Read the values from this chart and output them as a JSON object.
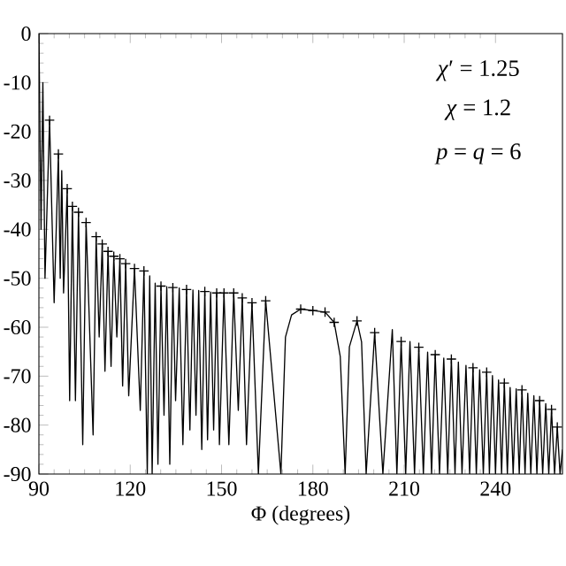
{
  "chart_data": {
    "type": "line",
    "xlabel": "Φ (degrees)",
    "annotations": [
      "*χ*′ = 1.25",
      "*χ* = 1.2",
      "*p* = *q* = 6"
    ],
    "xlim": [
      90,
      262
    ],
    "xticks": [
      90,
      120,
      150,
      180,
      210,
      240
    ],
    "ylim": [
      -90,
      0
    ],
    "yticks": [
      -90,
      -80,
      -70,
      -60,
      -50,
      -40,
      -30,
      -20,
      -10,
      0
    ],
    "series": [
      {
        "color": "#000000",
        "marker": "none",
        "line_style": "solid",
        "x": [
          90,
          90.7,
          91.3,
          92,
          93.5,
          95,
          96.4,
          97,
          97.5,
          98.1,
          99.3,
          100.1,
          101,
          102,
          103,
          104.4,
          105.5,
          107.8,
          108.8,
          109.8,
          110.8,
          111.7,
          112.7,
          113.7,
          114.6,
          115.6,
          116.6,
          117.5,
          118.5,
          119.5,
          121.4,
          123.3,
          124.5,
          125.6,
          126.4,
          127.2,
          128.2,
          129.1,
          130.1,
          131.1,
          132,
          133,
          134,
          134.9,
          136.1,
          137.3,
          138.5,
          139.6,
          140.6,
          141.6,
          142.5,
          143.5,
          144.5,
          145.4,
          146.4,
          147.4,
          148.4,
          149.3,
          150.8,
          152.4,
          154,
          155.5,
          156.8,
          158.2,
          160,
          162.1,
          164.5,
          169.5,
          171,
          173,
          176,
          180,
          184,
          187,
          189,
          190.6,
          192,
          194.5,
          196,
          197.5,
          200.3,
          203,
          206.1,
          207.6,
          209,
          210.5,
          211.9,
          213.4,
          214.8,
          216.3,
          217.7,
          219,
          220.2,
          221.6,
          223,
          224.3,
          225.5,
          226.7,
          227.8,
          229,
          230.3,
          231.5,
          232.6,
          233.7,
          234.8,
          236,
          237.1,
          238,
          239,
          240,
          241,
          242,
          242.9,
          243.9,
          244.8,
          245.8,
          246.8,
          247.8,
          248.7,
          249.7,
          250.6,
          251.6,
          252.6,
          253.6,
          254.5,
          255.5,
          256.5,
          257.5,
          258.4,
          259.4,
          260.3,
          261.2,
          262
        ],
        "values": [
          0,
          -40,
          -10,
          -50,
          -17.7,
          -55,
          -24.6,
          -50,
          -28,
          -53,
          -31.7,
          -75,
          -35.3,
          -75,
          -36.5,
          -84,
          -38.6,
          -82,
          -41.5,
          -62,
          -43,
          -69,
          -44.5,
          -68,
          -45.5,
          -62,
          -46,
          -72,
          -47,
          -74,
          -48,
          -77,
          -48.5,
          -90,
          -49.5,
          -90,
          -51,
          -88,
          -51.6,
          -78,
          -51.7,
          -88,
          -51.9,
          -75,
          -52,
          -84,
          -52.3,
          -81,
          -52.4,
          -78,
          -52.5,
          -85,
          -52.7,
          -83,
          -52.8,
          -81,
          -53,
          -84,
          -53,
          -84,
          -53,
          -77,
          -54,
          -84,
          -55,
          -90,
          -54.6,
          -90,
          -62,
          -57.5,
          -56.3,
          -56.6,
          -56.9,
          -59,
          -66,
          -90,
          -64,
          -58.7,
          -63,
          -90,
          -61.1,
          -90,
          -60.5,
          -90,
          -62.9,
          -90,
          -62.9,
          -90,
          -64.1,
          -90,
          -65.1,
          -90,
          -65.6,
          -90,
          -66.3,
          -90,
          -66.5,
          -90,
          -67.1,
          -90,
          -67.8,
          -90,
          -68.3,
          -90,
          -68.7,
          -90,
          -69.2,
          -90,
          -69.9,
          -90,
          -70.8,
          -90,
          -71.4,
          -90,
          -72.3,
          -90,
          -72.6,
          -90,
          -72.8,
          -90,
          -73.5,
          -90,
          -74,
          -90,
          -75,
          -90,
          -75.6,
          -90,
          -76.8,
          -90,
          -80.4,
          -90,
          -85
        ]
      },
      {
        "type": "scatter",
        "color": "#000000",
        "marker": "cross",
        "x": [
          93.5,
          96.4,
          99.3,
          101,
          103,
          105.5,
          108.8,
          110.8,
          112.7,
          114.6,
          116.6,
          118.5,
          121.4,
          124.5,
          130.1,
          134,
          138.5,
          144.5,
          148.4,
          150.8,
          154,
          156.8,
          160,
          164.5,
          176,
          180,
          184,
          187,
          194.5,
          200.3,
          209,
          214.8,
          220.2,
          225.5,
          232.6,
          237.1,
          242.9,
          248.7,
          254.5,
          258.4,
          260.3
        ],
        "values": [
          -17.7,
          -24.6,
          -31.7,
          -35.3,
          -36.5,
          -38.6,
          -41.5,
          -43,
          -44.5,
          -45.5,
          -46,
          -47,
          -48,
          -48.5,
          -51.6,
          -51.9,
          -52.3,
          -52.7,
          -53,
          -53,
          -53,
          -54,
          -55,
          -54.6,
          -56.3,
          -56.6,
          -56.9,
          -59,
          -58.7,
          -61.1,
          -62.9,
          -64.1,
          -65.6,
          -66.5,
          -68.3,
          -69.2,
          -71.4,
          -72.8,
          -75,
          -76.8,
          -80.4
        ]
      }
    ]
  }
}
